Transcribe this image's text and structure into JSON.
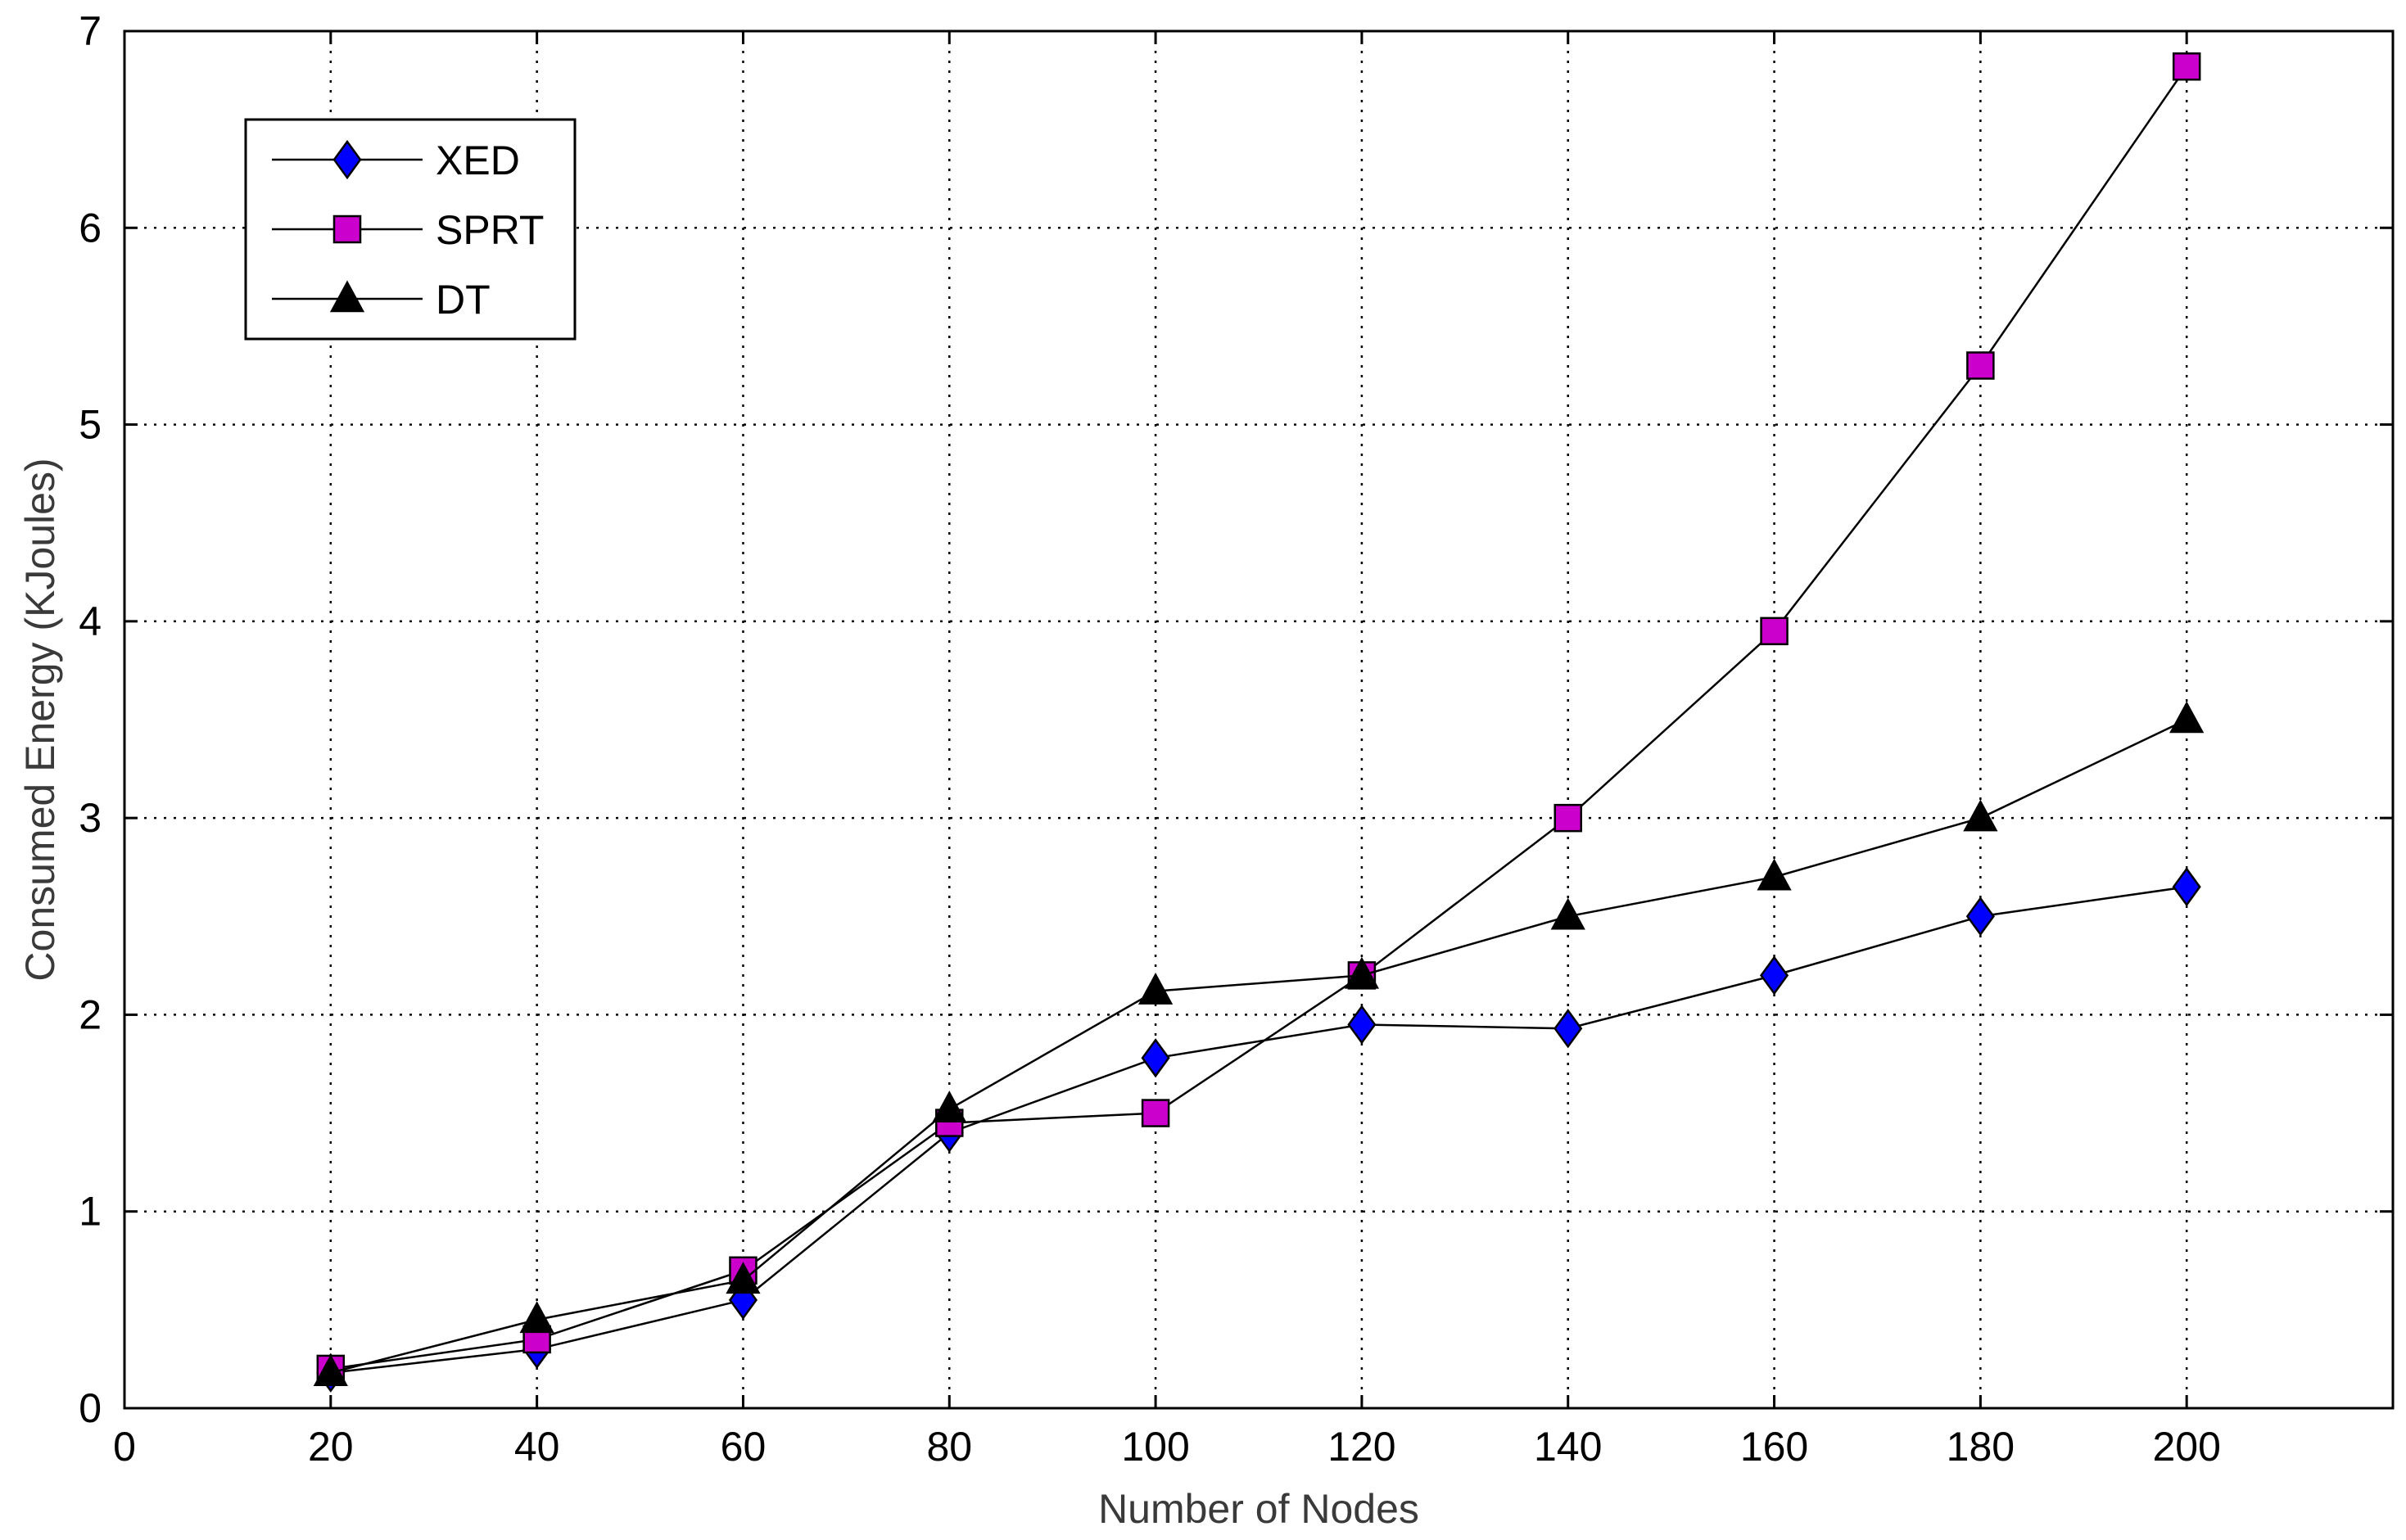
{
  "chart_data": {
    "type": "line",
    "title": "",
    "xlabel": "Number of Nodes",
    "ylabel": "Consumed Energy (KJoules)",
    "xlim": [
      0,
      220
    ],
    "ylim": [
      0,
      7
    ],
    "x_ticks": [
      0,
      20,
      40,
      60,
      80,
      100,
      120,
      140,
      160,
      180,
      200
    ],
    "y_ticks": [
      0,
      1,
      2,
      3,
      4,
      5,
      6,
      7
    ],
    "grid": true,
    "legend_position": "top-left",
    "x": [
      20,
      40,
      60,
      80,
      100,
      120,
      140,
      160,
      180,
      200
    ],
    "series": [
      {
        "name": "XED",
        "marker": "diamond",
        "color": "#0000ff",
        "values": [
          0.18,
          0.3,
          0.55,
          1.4,
          1.78,
          1.95,
          1.93,
          2.2,
          2.5,
          2.65
        ]
      },
      {
        "name": "SPRT",
        "marker": "square",
        "color": "#cc00cc",
        "values": [
          0.2,
          0.35,
          0.7,
          1.45,
          1.5,
          2.2,
          3.0,
          3.95,
          5.3,
          6.82
        ]
      },
      {
        "name": "DT",
        "marker": "triangle",
        "color": "#000000",
        "values": [
          0.18,
          0.45,
          0.65,
          1.52,
          2.12,
          2.2,
          2.5,
          2.7,
          3.0,
          3.5
        ]
      }
    ]
  }
}
